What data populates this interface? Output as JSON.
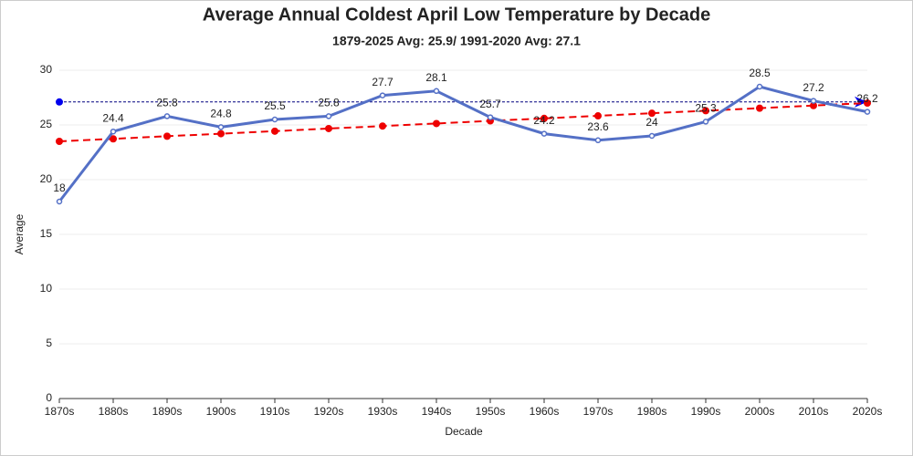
{
  "chart_data": {
    "type": "line",
    "title": "Average Annual Coldest April Low Temperature by Decade",
    "subtitle": "1879-2025 Avg: 25.9/ 1991-2020 Avg: 27.1",
    "x_label": "Decade",
    "y_label": "Average",
    "categories": [
      "1870s",
      "1880s",
      "1890s",
      "1900s",
      "1910s",
      "1920s",
      "1930s",
      "1940s",
      "1950s",
      "1960s",
      "1970s",
      "1980s",
      "1990s",
      "2000s",
      "2010s",
      "2020s"
    ],
    "series": [
      {
        "color": "#5470c6",
        "values": [
          18,
          24.4,
          25.8,
          24.8,
          25.5,
          25.8,
          27.7,
          28.1,
          25.7,
          24.2,
          23.6,
          24,
          25.3,
          28.5,
          27.2,
          26.2
        ],
        "labels": true
      },
      {
        "color": "#ee0000",
        "dashed": true,
        "values": [
          23.5,
          23.73,
          23.97,
          24.2,
          24.43,
          24.67,
          24.9,
          25.13,
          25.37,
          25.6,
          25.83,
          26.07,
          26.3,
          26.53,
          26.77,
          27.0
        ]
      }
    ],
    "reference_line": {
      "value": 27.1,
      "color": "#000080"
    },
    "ylim": [
      0,
      30
    ],
    "yticks": [
      0,
      5,
      10,
      15,
      20,
      25,
      30
    ],
    "grid": true
  }
}
